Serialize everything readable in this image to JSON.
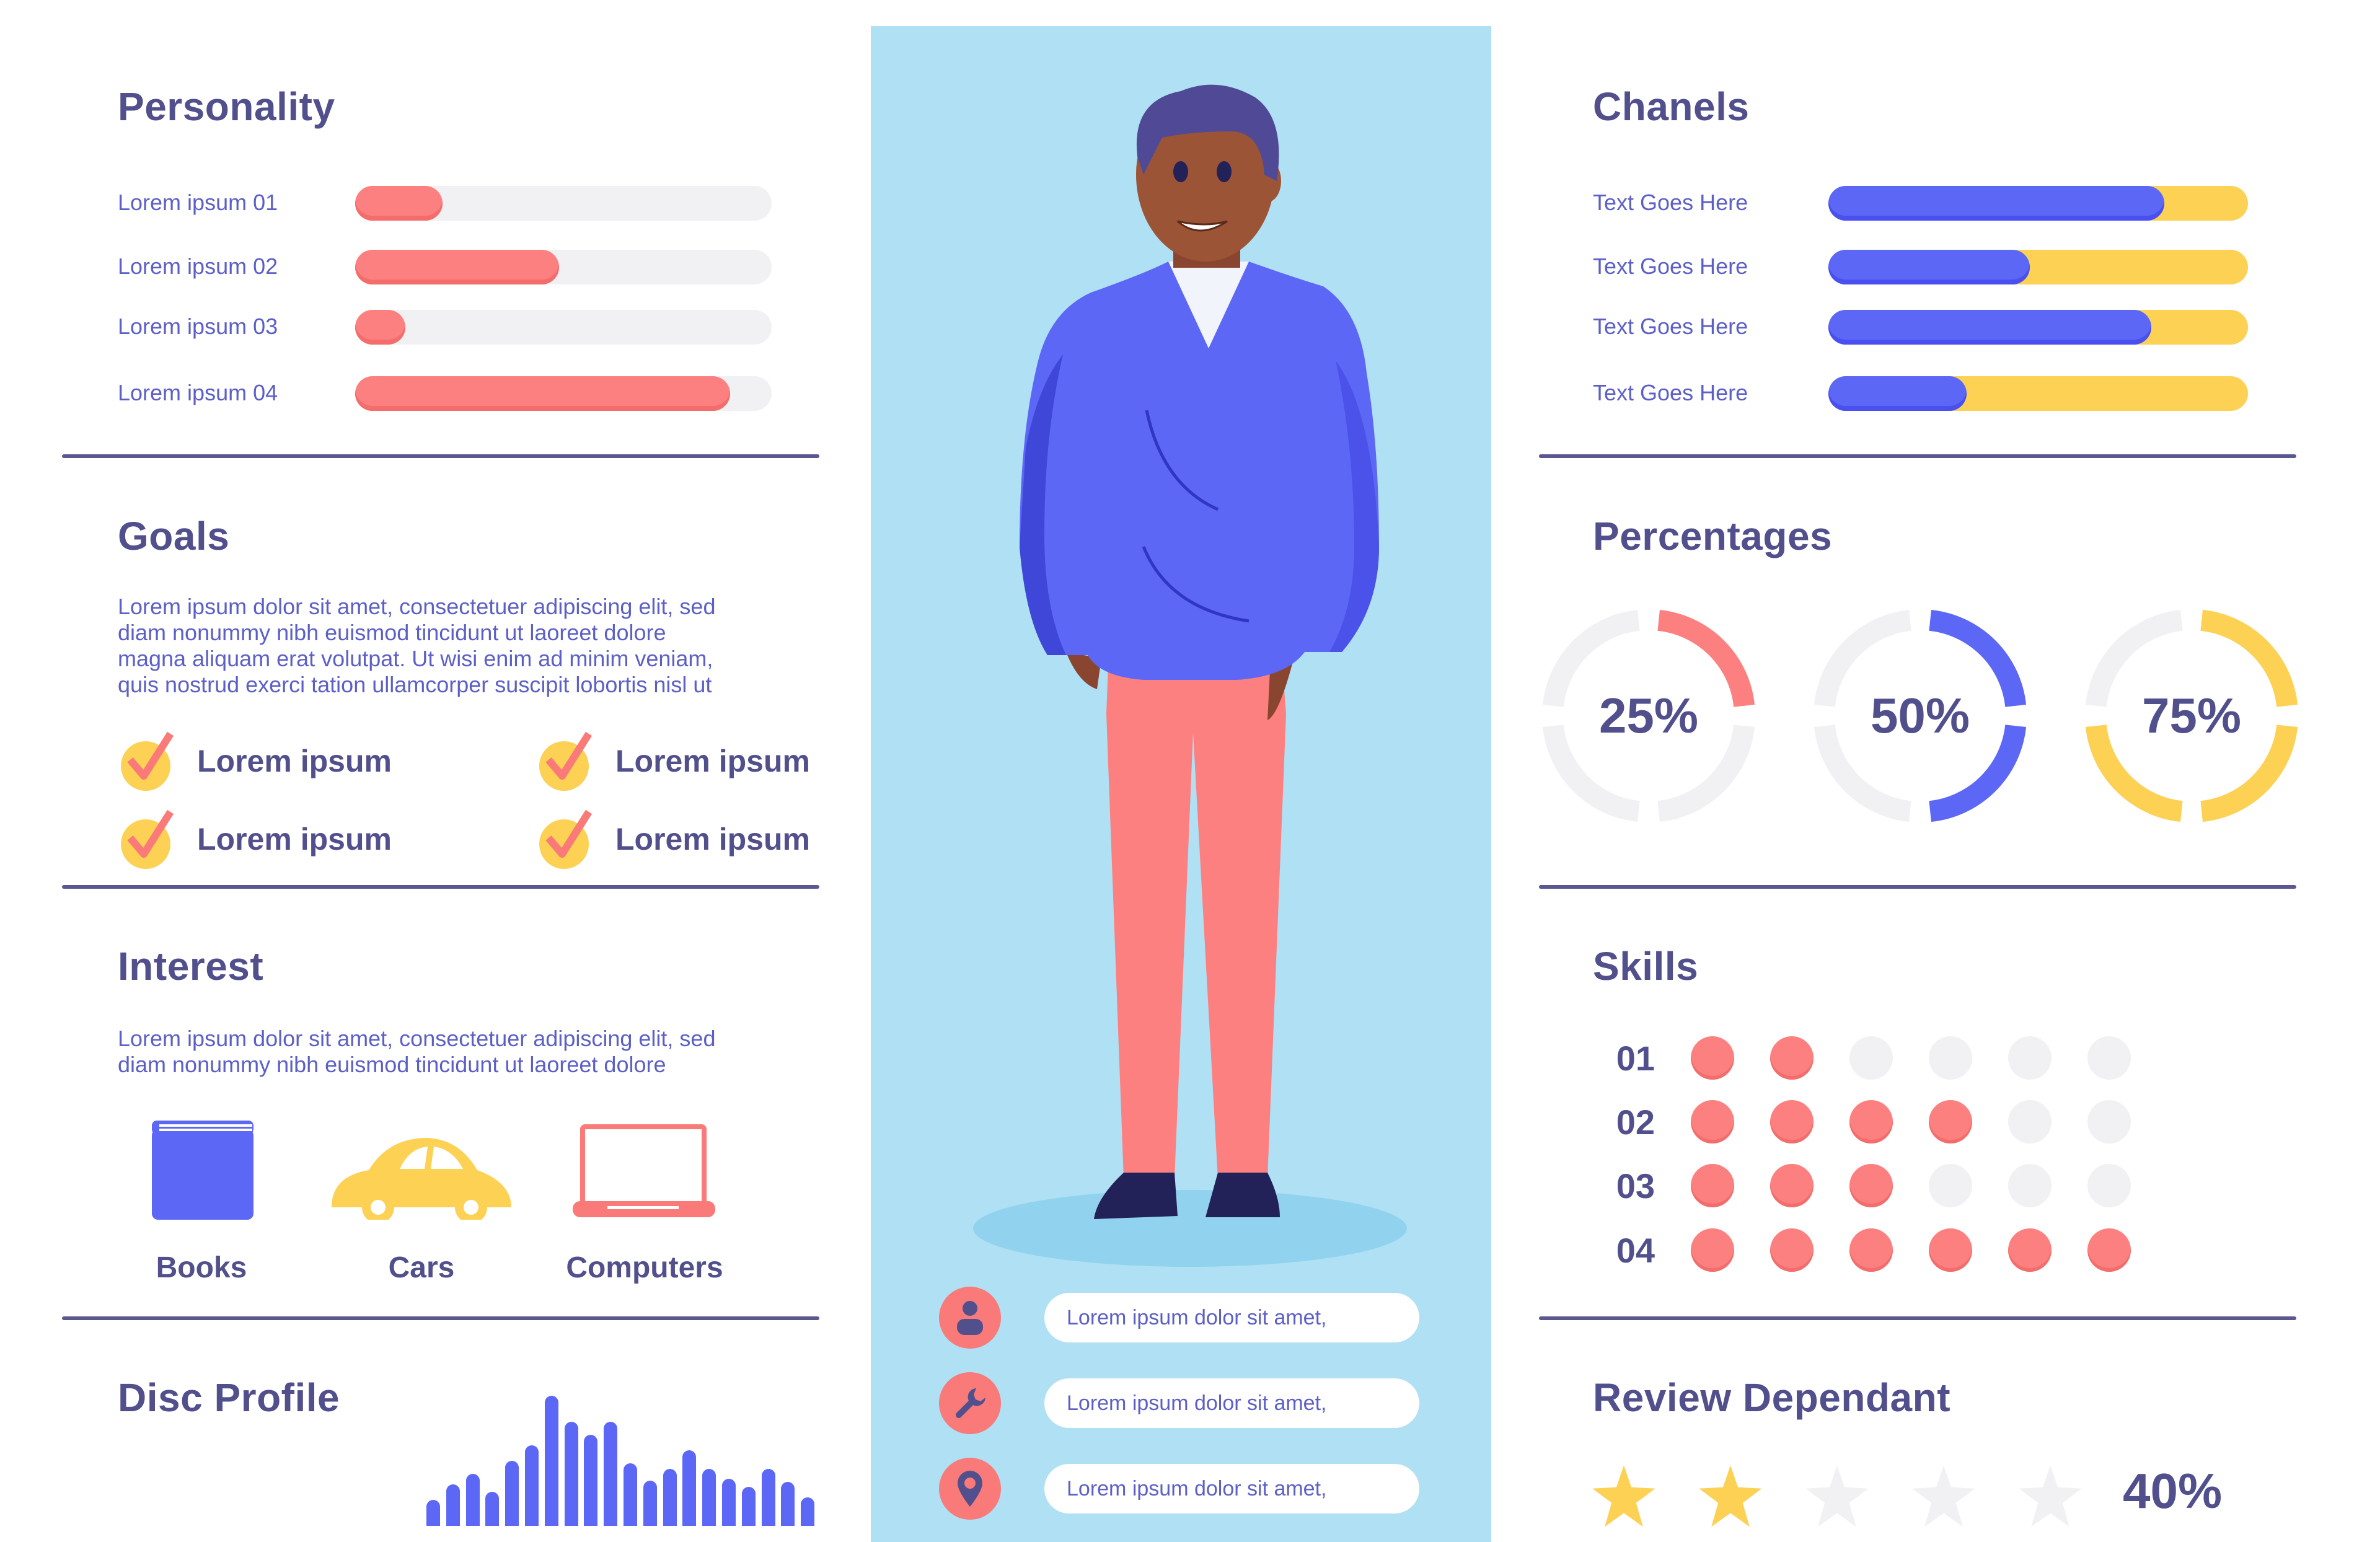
{
  "colors": {
    "heading": "#514f8c",
    "body_text": "#5c5fc6",
    "coral": "#fd8080",
    "blue": "#5d67f5",
    "yellow": "#fcd154",
    "track_gray": "#f1f1f3",
    "panel_blue": "#b0e0f3",
    "divider": "#5b5790"
  },
  "personality": {
    "title": "Personality",
    "items": [
      {
        "label": "Lorem ipsum 01",
        "value": 21
      },
      {
        "label": "Lorem ipsum 02",
        "value": 49
      },
      {
        "label": "Lorem ipsum 03",
        "value": 12
      },
      {
        "label": "Lorem ipsum 04",
        "value": 90
      }
    ]
  },
  "goals": {
    "title": "Goals",
    "paragraph": "Lorem ipsum dolor sit amet, consectetuer adipiscing elit, sed diam nonummy nibh euismod tincidunt ut laoreet dolore magna aliquam erat volutpat. Ut wisi enim ad minim veniam, quis nostrud exerci tation ullamcorper suscipit lobortis nisl ut",
    "lines": [
      "Lorem ipsum dolor sit amet, consectetuer adipiscing elit, sed",
      "diam nonummy nibh euismod tincidunt ut laoreet dolore",
      "magna aliquam erat volutpat. Ut wisi enim ad minim veniam,",
      "quis nostrud exerci tation ullamcorper suscipit lobortis nisl ut"
    ],
    "checklist": [
      "Lorem ipsum",
      "Lorem ipsum",
      "Lorem ipsum",
      "Lorem ipsum"
    ]
  },
  "interest": {
    "title": "Interest",
    "lines": [
      "Lorem ipsum dolor sit amet, consectetuer adipiscing elit, sed",
      "diam nonummy nibh euismod tincidunt ut laoreet dolore"
    ],
    "items": [
      {
        "label": "Books",
        "icon": "book-icon"
      },
      {
        "label": "Cars",
        "icon": "car-icon"
      },
      {
        "label": "Computers",
        "icon": "laptop-icon"
      }
    ]
  },
  "disc_profile": {
    "title": "Disc Profile"
  },
  "persona": {
    "info": [
      {
        "icon": "user-icon",
        "text": "Lorem ipsum dolor sit amet,"
      },
      {
        "icon": "wrench-icon",
        "text": "Lorem ipsum dolor sit amet,"
      },
      {
        "icon": "location-pin-icon",
        "text": "Lorem ipsum dolor sit amet,"
      }
    ]
  },
  "channels": {
    "title": "Chanels",
    "items": [
      {
        "label": "Text Goes Here",
        "value": 80
      },
      {
        "label": "Text Goes Here",
        "value": 48
      },
      {
        "label": "Text Goes Here",
        "value": 77
      },
      {
        "label": "Text Goes Here",
        "value": 33
      }
    ]
  },
  "percentages": {
    "title": "Percentages",
    "items": [
      {
        "label": "25%",
        "value": 25,
        "color": "#fd8080"
      },
      {
        "label": "50%",
        "value": 50,
        "color": "#5d67f5"
      },
      {
        "label": "75%",
        "value": 75,
        "color": "#fcd154"
      }
    ]
  },
  "skills": {
    "title": "Skills",
    "max": 6,
    "items": [
      {
        "label": "01",
        "value": 2
      },
      {
        "label": "02",
        "value": 4
      },
      {
        "label": "03",
        "value": 3
      },
      {
        "label": "04",
        "value": 6
      }
    ]
  },
  "review": {
    "title": "Review Dependant",
    "stars_filled": 2,
    "stars_total": 5,
    "percent_label": "40%"
  },
  "chart_data": [
    {
      "type": "bar",
      "title": "Personality",
      "orientation": "horizontal",
      "categories": [
        "Lorem ipsum 01",
        "Lorem ipsum 02",
        "Lorem ipsum 03",
        "Lorem ipsum 04"
      ],
      "values": [
        21,
        49,
        12,
        90
      ],
      "ylim": [
        0,
        100
      ]
    },
    {
      "type": "bar",
      "title": "Chanels",
      "orientation": "horizontal",
      "stacked": true,
      "categories": [
        "Text Goes Here",
        "Text Goes Here",
        "Text Goes Here",
        "Text Goes Here"
      ],
      "series": [
        {
          "name": "primary",
          "values": [
            80,
            48,
            77,
            33
          ]
        },
        {
          "name": "remainder",
          "values": [
            20,
            52,
            23,
            67
          ]
        }
      ],
      "ylim": [
        0,
        100
      ]
    },
    {
      "type": "pie",
      "title": "Percentages",
      "style": "donut",
      "categories": [
        "25%",
        "50%",
        "75%"
      ],
      "values": [
        25,
        50,
        75
      ]
    },
    {
      "type": "table",
      "title": "Skills",
      "categories": [
        "01",
        "02",
        "03",
        "04"
      ],
      "values": [
        2,
        4,
        3,
        6
      ],
      "max": 6
    },
    {
      "type": "bar",
      "title": "Disc Profile",
      "categories": [
        "1",
        "2",
        "3",
        "4",
        "5",
        "6",
        "7",
        "8",
        "9",
        "10",
        "11",
        "12",
        "13",
        "14",
        "15",
        "16",
        "17",
        "18",
        "19",
        "20"
      ],
      "values": [
        20,
        32,
        40,
        26,
        50,
        62,
        100,
        80,
        70,
        80,
        48,
        35,
        44,
        58,
        44,
        36,
        30,
        44,
        34,
        22
      ],
      "ylim": [
        0,
        100
      ],
      "grid": false
    },
    {
      "type": "bar",
      "title": "Review Dependant",
      "categories": [
        "rating"
      ],
      "values": [
        40
      ],
      "annotations": [
        "2 of 5 stars",
        "40%"
      ]
    }
  ]
}
